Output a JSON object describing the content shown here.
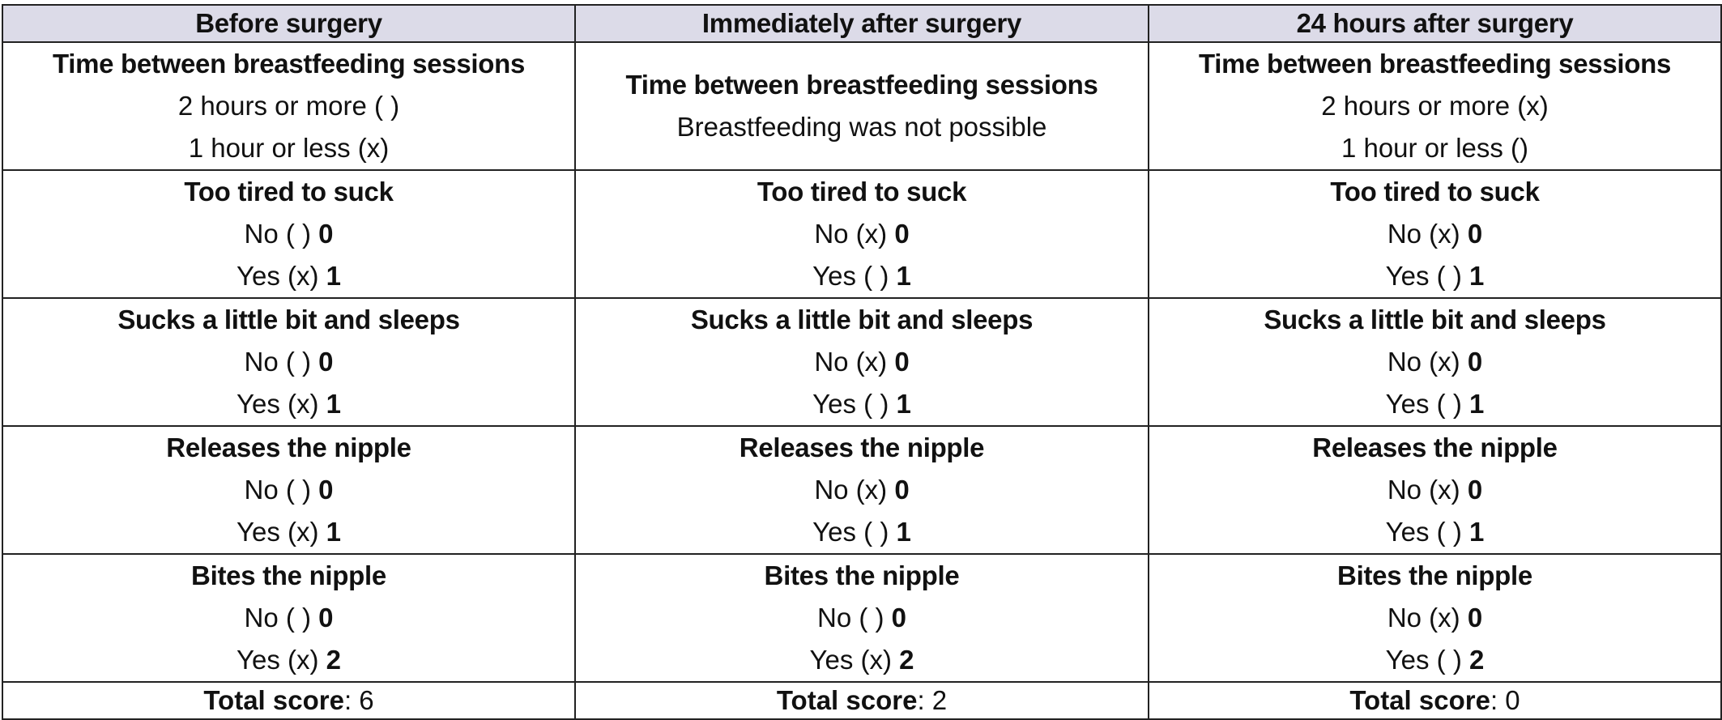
{
  "headers": [
    "Before surgery",
    "Immediately after surgery",
    "24 hours after surgery"
  ],
  "rows": [
    {
      "cells": [
        {
          "label": "Time between breastfeeding sessions",
          "options": [
            {
              "text": "2 hours or more ( )",
              "points": ""
            },
            {
              "text": "1 hour or less (x)",
              "points": ""
            }
          ]
        },
        {
          "label": "Time between breastfeeding sessions",
          "options": [
            {
              "text": "Breastfeeding was not possible",
              "points": ""
            }
          ]
        },
        {
          "label": "Time between breastfeeding sessions",
          "options": [
            {
              "text": "2 hours or more (x)",
              "points": ""
            },
            {
              "text": "1 hour or less ()",
              "points": ""
            }
          ]
        }
      ]
    },
    {
      "cells": [
        {
          "label": "Too tired to suck",
          "options": [
            {
              "text": "No ( )",
              "points": "0"
            },
            {
              "text": "Yes (x)",
              "points": "1"
            }
          ]
        },
        {
          "label": "Too tired to suck",
          "options": [
            {
              "text": "No (x)",
              "points": "0"
            },
            {
              "text": "Yes ( )",
              "points": "1"
            }
          ]
        },
        {
          "label": "Too tired to suck",
          "options": [
            {
              "text": "No (x)",
              "points": "0"
            },
            {
              "text": "Yes ( )",
              "points": "1"
            }
          ]
        }
      ]
    },
    {
      "cells": [
        {
          "label": "Sucks a little bit and sleeps",
          "options": [
            {
              "text": "No ( )",
              "points": "0"
            },
            {
              "text": "Yes (x)",
              "points": "1"
            }
          ]
        },
        {
          "label": "Sucks a little bit and sleeps",
          "options": [
            {
              "text": "No (x)",
              "points": "0"
            },
            {
              "text": "Yes ( )",
              "points": "1"
            }
          ]
        },
        {
          "label": "Sucks a little bit and sleeps",
          "options": [
            {
              "text": "No (x)",
              "points": "0"
            },
            {
              "text": "Yes ( )",
              "points": "1"
            }
          ]
        }
      ]
    },
    {
      "cells": [
        {
          "label": "Releases the nipple",
          "options": [
            {
              "text": "No ( )",
              "points": "0"
            },
            {
              "text": "Yes (x)",
              "points": "1"
            }
          ]
        },
        {
          "label": "Releases the nipple",
          "options": [
            {
              "text": "No (x)",
              "points": "0"
            },
            {
              "text": "Yes ( )",
              "points": "1"
            }
          ]
        },
        {
          "label": "Releases the nipple",
          "options": [
            {
              "text": "No (x)",
              "points": "0"
            },
            {
              "text": "Yes ( )",
              "points": "1"
            }
          ]
        }
      ]
    },
    {
      "cells": [
        {
          "label": "Bites the nipple",
          "options": [
            {
              "text": "No ( )",
              "points": "0"
            },
            {
              "text": "Yes (x)",
              "points": "2"
            }
          ]
        },
        {
          "label": "Bites the nipple",
          "options": [
            {
              "text": "No ( )",
              "points": "0"
            },
            {
              "text": "Yes (x)",
              "points": "2"
            }
          ]
        },
        {
          "label": "Bites the nipple",
          "options": [
            {
              "text": "No (x)",
              "points": "0"
            },
            {
              "text": "Yes ( )",
              "points": "2"
            }
          ]
        }
      ]
    }
  ],
  "totals": {
    "label": "Total score",
    "separator": ":",
    "values": [
      "6",
      "2",
      "0"
    ]
  },
  "colors": {
    "header_bg": "#dcdbe8",
    "border": "#222222"
  }
}
